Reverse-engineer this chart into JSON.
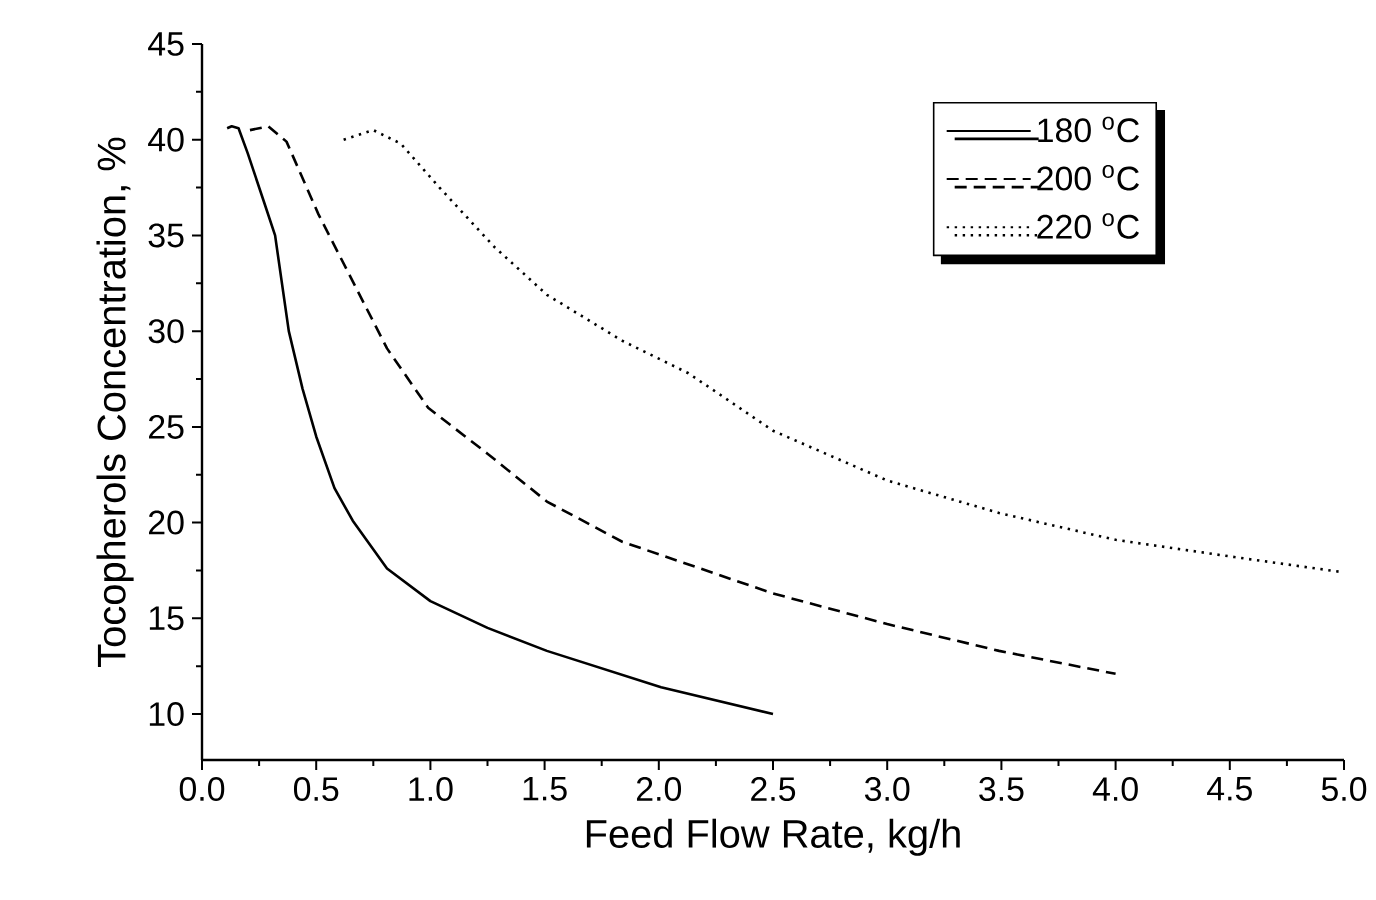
{
  "chart_data": {
    "type": "line",
    "xlabel": "Feed Flow Rate, kg/h",
    "ylabel": "Tocopherols Concentration, %",
    "xlim": [
      0,
      5
    ],
    "ylim": [
      7.6,
      45
    ],
    "xticks": [
      {
        "value": 0,
        "label": "0.0"
      },
      {
        "value": 0.5,
        "label": "0.5"
      },
      {
        "value": 1,
        "label": "1.0"
      },
      {
        "value": 1.5,
        "label": "1.5"
      },
      {
        "value": 2,
        "label": "2.0"
      },
      {
        "value": 2.5,
        "label": "2.5"
      },
      {
        "value": 3,
        "label": "3.0"
      },
      {
        "value": 3.5,
        "label": "3.5"
      },
      {
        "value": 4,
        "label": "4.0"
      },
      {
        "value": 4.5,
        "label": "4.5"
      },
      {
        "value": 5,
        "label": "5.0"
      }
    ],
    "yticks": [
      10,
      15,
      20,
      25,
      30,
      35,
      40,
      45
    ],
    "legend": "top right",
    "grid": false,
    "series": [
      {
        "name": "180 $^{o}$C",
        "color": "#000000",
        "line_style": "solid",
        "x": [
          0.11,
          0.13,
          0.16,
          0.2,
          0.27,
          0.32,
          0.38,
          0.44,
          0.5,
          0.58,
          0.66,
          0.81,
          1.0,
          1.25,
          1.51,
          2.01,
          2.5
        ],
        "values": [
          40.6,
          40.7,
          40.6,
          39.3,
          36.8,
          35.0,
          30.0,
          27.0,
          24.5,
          21.8,
          20.1,
          17.6,
          15.9,
          14.5,
          13.3,
          11.4,
          10.0
        ]
      },
      {
        "name": "200 $^{o}$C",
        "color": "#000000",
        "line_style": "dashed",
        "x": [
          0.21,
          0.29,
          0.37,
          0.51,
          0.66,
          0.81,
          0.99,
          1.25,
          1.51,
          1.84,
          2.5,
          3.0,
          3.49,
          4.0
        ],
        "values": [
          40.5,
          40.7,
          39.9,
          36.1,
          32.6,
          29.1,
          26.0,
          23.6,
          21.1,
          19.0,
          16.3,
          14.7,
          13.3,
          12.1
        ]
      },
      {
        "name": "220 $^{o}$C",
        "color": "#000000",
        "line_style": "dotted",
        "x": [
          0.62,
          0.75,
          0.87,
          1.04,
          1.28,
          1.51,
          1.84,
          2.13,
          2.5,
          3.0,
          3.49,
          4.0,
          4.52,
          5.0
        ],
        "values": [
          40.0,
          40.5,
          39.8,
          37.5,
          34.4,
          31.9,
          29.5,
          27.8,
          24.8,
          22.2,
          20.5,
          19.1,
          18.2,
          17.4
        ]
      }
    ]
  }
}
